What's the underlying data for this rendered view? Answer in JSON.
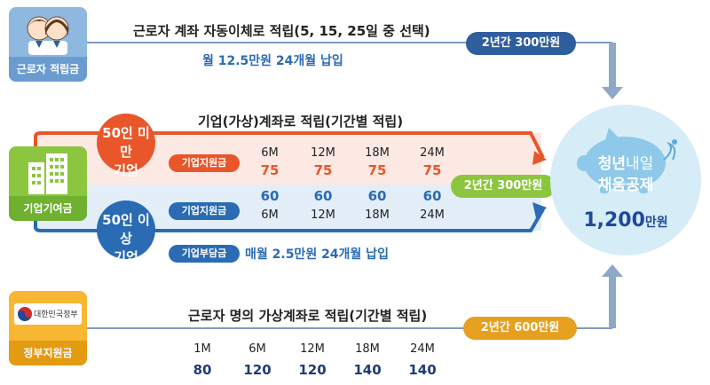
{
  "worker": {
    "tile_label": "근로자 적립금",
    "headline": "근로자 계좌 자동이체로 적립(5, 15, 25일 중 선택)",
    "subline": "월 12.5만원 24개월 납입",
    "total_badge": "2년간 300만원"
  },
  "company": {
    "tile_label": "기업기여금",
    "headline": "기업(가상)계좌로 적립(기간별 적립)",
    "small": {
      "circle_line1": "50인 미만",
      "circle_line2": "기업",
      "tag": "기업지원금",
      "periods": [
        "6M",
        "12M",
        "18M",
        "24M"
      ],
      "amounts": [
        "75",
        "75",
        "75",
        "75"
      ]
    },
    "large": {
      "circle_line1": "50인 이상",
      "circle_line2": "기업",
      "tag": "기업지원금",
      "amounts": [
        "60",
        "60",
        "60",
        "60"
      ],
      "periods": [
        "6M",
        "12M",
        "18M",
        "24M"
      ],
      "burden_tag": "기업부담금",
      "burden_text": "매월 2.5만원 24개월 납입"
    },
    "total_badge": "2년간 300만원"
  },
  "government": {
    "tile_label": "정부지원금",
    "emblem_text": "대한민국정부",
    "headline": "근로자 명의 가상계좌로 적립(기간별 적립)",
    "periods": [
      "1M",
      "6M",
      "12M",
      "18M",
      "24M"
    ],
    "amounts": [
      "80",
      "120",
      "120",
      "140",
      "140"
    ],
    "total_badge": "2년간 600만원"
  },
  "result": {
    "title_a": "청년",
    "title_b": "내일",
    "title_line2": "채움공제",
    "amount_num": "1,200",
    "amount_unit": "만원"
  },
  "colors": {
    "worker_tile": "#8fb8e0",
    "worker_cap": "#6a9cd0",
    "company_tile": "#8cc63f",
    "company_cap": "#6fb030",
    "gov_tile": "#f7b733",
    "gov_cap": "#e39b12",
    "navy_pill": "#2f5e9e",
    "orange": "#e8562a",
    "blue": "#2a6bb4",
    "gold": "#e6a020",
    "result_circle": "#d6ecf7"
  }
}
